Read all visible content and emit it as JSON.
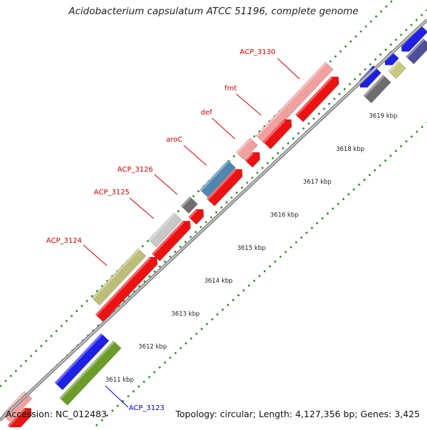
{
  "title": "Acidobacterium capsulatum ATCC 51196, complete genome",
  "footer": {
    "accession": "Accession: NC_012483",
    "summary": "Topology: circular; Length: 4,127,356 bp; Genes: 3,425"
  },
  "colors": {
    "backbone": "#9a9a9a",
    "tick_dot": "#2e8b2e",
    "gene_label": "#cc0000",
    "gene_label_blue": "#0000cc"
  },
  "scale_labels": [
    {
      "label": "3611 kbp",
      "t": 0.0
    },
    {
      "label": "3612 kbp",
      "t": 1.0
    },
    {
      "label": "3613 kbp",
      "t": 2.0
    },
    {
      "label": "3614 kbp",
      "t": 3.0
    },
    {
      "label": "3615 kbp",
      "t": 4.0
    },
    {
      "label": "3616 kbp",
      "t": 5.0
    },
    {
      "label": "3617 kbp",
      "t": 6.0
    },
    {
      "label": "3618 kbp",
      "t": 7.0
    },
    {
      "label": "3619 kbp",
      "t": 8.0
    }
  ],
  "gene_labels": [
    {
      "name": "ACP_3130",
      "color": "red"
    },
    {
      "name": "fmt",
      "color": "red"
    },
    {
      "name": "def",
      "color": "red"
    },
    {
      "name": "aroC",
      "color": "red"
    },
    {
      "name": "ACP_3126",
      "color": "red"
    },
    {
      "name": "ACP_3125",
      "color": "red"
    },
    {
      "name": "ACP_3124",
      "color": "red"
    },
    {
      "name": "ACP_3123",
      "color": "blue"
    }
  ]
}
